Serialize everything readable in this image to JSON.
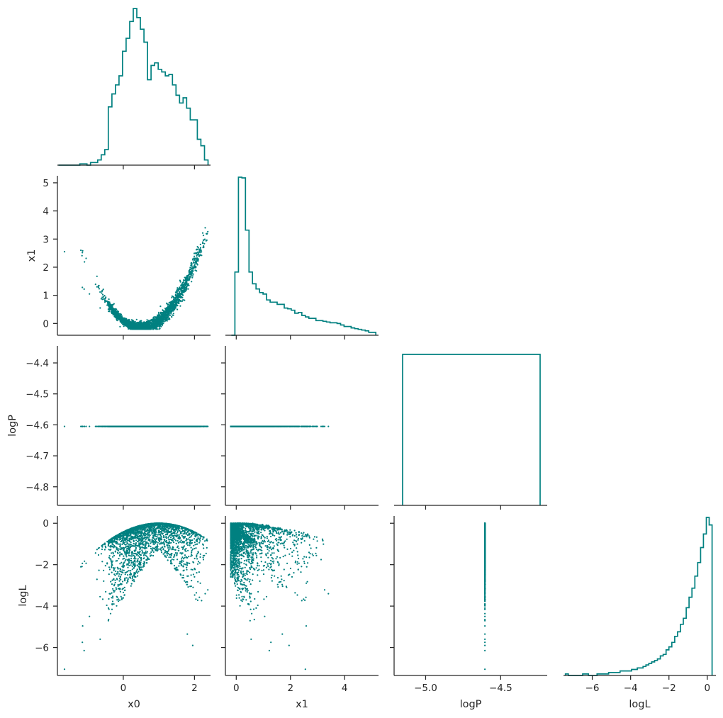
{
  "chart_data": {
    "type": "corner",
    "color": "#008080",
    "variables": [
      "x0",
      "x1",
      "logP",
      "logL"
    ],
    "axes": {
      "x0": {
        "range": [
          -1.85,
          2.45
        ],
        "ticks": [
          0,
          2
        ],
        "tick_labels": [
          "0",
          "2"
        ],
        "label": "x0"
      },
      "x1": {
        "range": [
          -0.4,
          5.25
        ],
        "ticks": [
          0,
          2,
          4
        ],
        "tick_labels": [
          "0",
          "2",
          "4"
        ],
        "label": "x1",
        "row_range": [
          -0.42,
          5.25
        ],
        "row_ticks": [
          0,
          1,
          2,
          3,
          4,
          5
        ],
        "row_tick_labels": [
          "0",
          "1",
          "2",
          "3",
          "4",
          "5"
        ]
      },
      "logP": {
        "range": [
          -5.21,
          -4.19
        ],
        "ticks": [
          -5.0,
          -4.5
        ],
        "tick_labels": [
          "−5.0",
          "−4.5"
        ],
        "label": "logP",
        "row_range": [
          -4.86,
          -4.345
        ],
        "row_ticks": [
          -4.4,
          -4.5,
          -4.6,
          -4.7,
          -4.8
        ],
        "row_tick_labels": [
          "−4.4",
          "−4.5",
          "−4.6",
          "−4.7",
          "−4.8"
        ]
      },
      "logL": {
        "range": [
          -7.5,
          0.45
        ],
        "ticks": [
          -6,
          -4,
          -2,
          0
        ],
        "tick_labels": [
          "−6",
          "−4",
          "−2",
          "0"
        ],
        "label": "logL",
        "row_range": [
          -7.35,
          0.35
        ],
        "row_ticks": [
          0,
          -2,
          -4,
          -6
        ],
        "row_tick_labels": [
          "0",
          "−2",
          "−4",
          "−6"
        ]
      }
    },
    "histograms": [
      {
        "variable": "x0",
        "bin_start": -1.82,
        "bin_width": 0.1,
        "counts": [
          0,
          0,
          0,
          0,
          0,
          0,
          1,
          1,
          0,
          2,
          2,
          4,
          8,
          12,
          45,
          55,
          62,
          69,
          88,
          98,
          111,
          121,
          114,
          105,
          95,
          66,
          77,
          79,
          74,
          72,
          69,
          70,
          62,
          54,
          48,
          52,
          44,
          35,
          35,
          20,
          15,
          4
        ]
      },
      {
        "variable": "x1",
        "bin_start": -0.18,
        "bin_width": 0.13,
        "counts": [
          0,
          86,
          215,
          214,
          143,
          86,
          70,
          63,
          58,
          56,
          48,
          45,
          45,
          42,
          42,
          37,
          36,
          34,
          30,
          31,
          27,
          25,
          23,
          23,
          20,
          20,
          19,
          18,
          17,
          17,
          16,
          14,
          12,
          12,
          10,
          9,
          8,
          7,
          6,
          4,
          4
        ]
      },
      {
        "variable": "logP",
        "bin_start": -5.1,
        "bin_width": 1.0,
        "counts": [
          1
        ]
      },
      {
        "variable": "logL",
        "bin_start": -7.4,
        "bin_width": 0.15,
        "counts": [
          1,
          0,
          0,
          0,
          0,
          0,
          1,
          1,
          0,
          0,
          0,
          1,
          1,
          1,
          1,
          2,
          2,
          2,
          2,
          3,
          3,
          3,
          3,
          4,
          4,
          5,
          5,
          6,
          7,
          8,
          9,
          10,
          11,
          13,
          14,
          17,
          19,
          22,
          26,
          29,
          34,
          38,
          45,
          52,
          58,
          66,
          75,
          85,
          94,
          105,
          100
        ]
      }
    ],
    "scatter_notes": "x0 vs x1 follows parabola x1 = (x0 - 0.5)^2 - 0.15 with scatter; logP constant at -4.605; logL = -((x0 - 1)^2 + ...) concentrated near 0",
    "grid": false,
    "legend": "none"
  }
}
